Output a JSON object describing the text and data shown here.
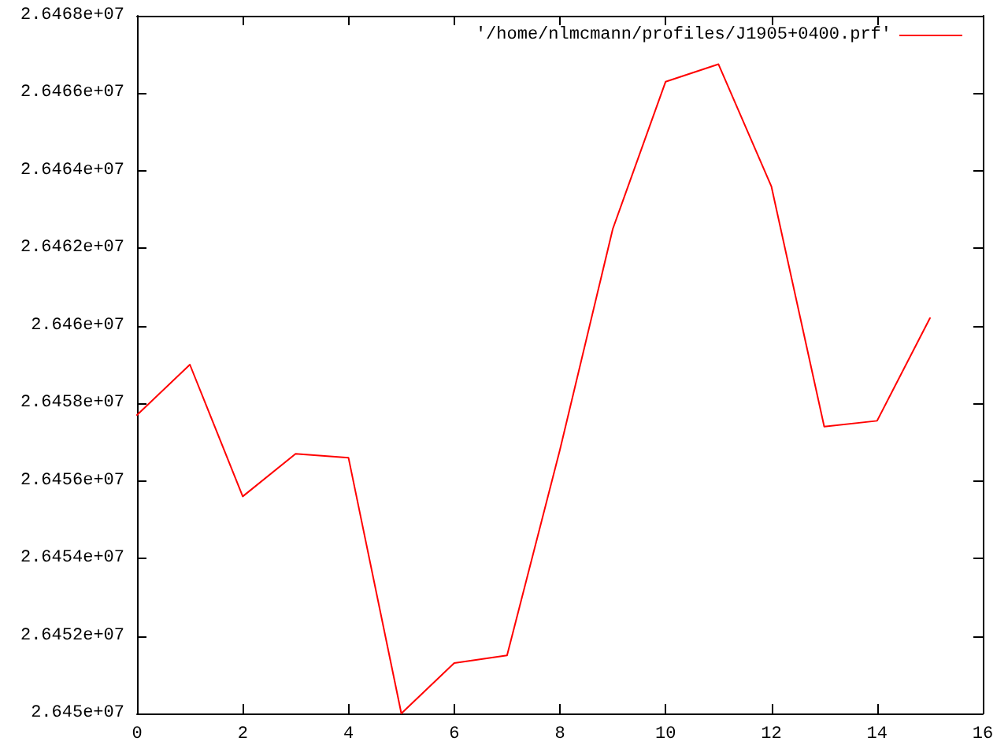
{
  "chart_data": {
    "type": "line",
    "x": [
      0,
      1,
      2,
      3,
      4,
      5,
      6,
      7,
      8,
      9,
      10,
      11,
      12,
      13,
      14,
      15
    ],
    "series": [
      {
        "name": "'/home/nlmcmann/profiles/J1905+0400.prf'",
        "color": "#ff0000",
        "values": [
          26457700,
          26459000,
          26455600,
          26456700,
          26456600,
          26450000,
          26451300,
          26451500,
          26456800,
          26462500,
          26466300,
          26466750,
          26463600,
          26457400,
          26457550,
          26460200
        ]
      }
    ],
    "xlim": [
      0,
      16
    ],
    "xticks": [
      0,
      2,
      4,
      6,
      8,
      10,
      12,
      14,
      16
    ],
    "ylim": [
      26450000,
      26468000
    ],
    "yticks": [
      {
        "value": 26450000,
        "label": "2.645e+07"
      },
      {
        "value": 26452000,
        "label": "2.6452e+07"
      },
      {
        "value": 26454000,
        "label": "2.6454e+07"
      },
      {
        "value": 26456000,
        "label": "2.6456e+07"
      },
      {
        "value": 26458000,
        "label": "2.6458e+07"
      },
      {
        "value": 26460000,
        "label": "2.646e+07"
      },
      {
        "value": 26462000,
        "label": "2.6462e+07"
      },
      {
        "value": 26464000,
        "label": "2.6464e+07"
      },
      {
        "value": 26466000,
        "label": "2.6466e+07"
      },
      {
        "value": 26468000,
        "label": "2.6468e+07"
      }
    ],
    "grid": false,
    "legend": "top right",
    "marker": "none",
    "line_style": "solid"
  }
}
